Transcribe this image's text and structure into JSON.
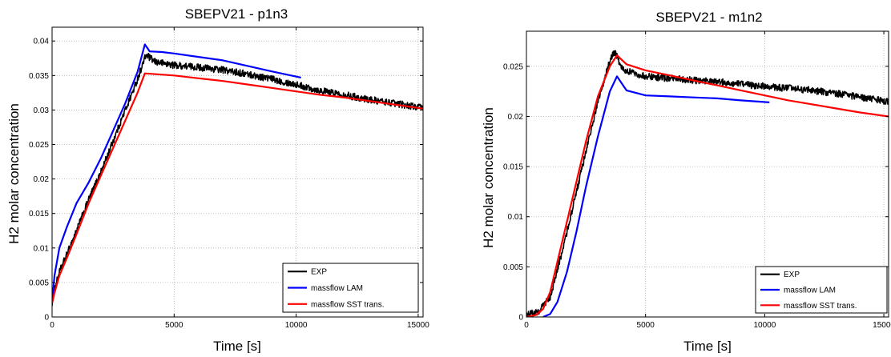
{
  "chart_data": [
    {
      "type": "line",
      "title": "SBEPV21 - p1n3",
      "xlabel": "Time [s]",
      "ylabel": "H2 molar concentration",
      "xlim": [
        0,
        15200
      ],
      "ylim": [
        0,
        0.042
      ],
      "xticks": [
        0,
        5000,
        10000,
        15000
      ],
      "yticks": [
        0,
        0.005,
        0.01,
        0.015,
        0.02,
        0.025,
        0.03,
        0.035,
        0.04
      ],
      "xtick_labels": [
        "0",
        "5000",
        "10000",
        "15000"
      ],
      "ytick_labels": [
        "0",
        "0.005",
        "0.01",
        "0.015",
        "0.02",
        "0.025",
        "0.03",
        "0.035",
        "0.04"
      ],
      "grid": true,
      "legend_position": "bottom-right",
      "series": [
        {
          "name": "EXP",
          "color": "#000000",
          "noisy": true,
          "x": [
            0,
            100,
            300,
            600,
            1000,
            1500,
            2000,
            2500,
            3000,
            3400,
            3700,
            3850,
            4200,
            5000,
            6000,
            7000,
            8000,
            9000,
            10000,
            11000,
            12000,
            13000,
            14000,
            15200
          ],
          "y": [
            0.002,
            0.004,
            0.0065,
            0.009,
            0.0125,
            0.017,
            0.021,
            0.0255,
            0.03,
            0.0335,
            0.0365,
            0.038,
            0.037,
            0.0365,
            0.0362,
            0.0358,
            0.0352,
            0.0345,
            0.0337,
            0.0328,
            0.0322,
            0.0315,
            0.031,
            0.0303
          ]
        },
        {
          "name": "massflow LAM",
          "color": "#0000ff",
          "noisy": false,
          "x": [
            0,
            100,
            300,
            600,
            1000,
            1500,
            2000,
            2500,
            3000,
            3500,
            3800,
            4000,
            4500,
            5000,
            6000,
            7000,
            8000,
            9000,
            10200
          ],
          "y": [
            0.002,
            0.006,
            0.01,
            0.013,
            0.0165,
            0.0195,
            0.023,
            0.027,
            0.031,
            0.0355,
            0.0395,
            0.0385,
            0.0384,
            0.0382,
            0.0377,
            0.0372,
            0.0364,
            0.0356,
            0.0347
          ]
        },
        {
          "name": "massflow SST trans.",
          "color": "#ff0000",
          "noisy": false,
          "x": [
            0,
            100,
            300,
            600,
            1000,
            1500,
            2000,
            2500,
            3000,
            3500,
            3800,
            5000,
            6000,
            7000,
            8000,
            9000,
            10000,
            11000,
            12000,
            13000,
            14000,
            15200
          ],
          "y": [
            0.002,
            0.0035,
            0.006,
            0.0085,
            0.012,
            0.0165,
            0.0205,
            0.0245,
            0.0285,
            0.0325,
            0.0353,
            0.035,
            0.0346,
            0.0342,
            0.0337,
            0.0332,
            0.0327,
            0.0322,
            0.0318,
            0.0313,
            0.0308,
            0.0302
          ]
        }
      ]
    },
    {
      "type": "line",
      "title": "SBEPV21 - m1n2",
      "xlabel": "Time [s]",
      "ylabel": "H2 molar concentration",
      "xlim": [
        0,
        15200
      ],
      "ylim": [
        0,
        0.0285
      ],
      "xticks": [
        0,
        5000,
        10000,
        15000
      ],
      "yticks": [
        0,
        0.005,
        0.01,
        0.015,
        0.02,
        0.025
      ],
      "xtick_labels": [
        "0",
        "5000",
        "10000",
        "15000"
      ],
      "ytick_labels": [
        "0",
        "0.005",
        "0.01",
        "0.015",
        "0.02",
        "0.025"
      ],
      "grid": true,
      "legend_position": "bottom-right",
      "series": [
        {
          "name": "EXP",
          "color": "#000000",
          "noisy": true,
          "x": [
            0,
            500,
            1000,
            1500,
            2000,
            2500,
            3000,
            3500,
            3700,
            4000,
            4500,
            5000,
            6000,
            7000,
            8000,
            9000,
            10000,
            11000,
            12000,
            13000,
            14000,
            15200
          ],
          "y": [
            0.0003,
            0.0005,
            0.002,
            0.0065,
            0.0115,
            0.0165,
            0.0215,
            0.0255,
            0.0265,
            0.0248,
            0.0243,
            0.024,
            0.0238,
            0.0236,
            0.0235,
            0.0232,
            0.023,
            0.0228,
            0.0226,
            0.0223,
            0.0219,
            0.0215
          ]
        },
        {
          "name": "massflow LAM",
          "color": "#0000ff",
          "noisy": false,
          "x": [
            700,
            1000,
            1300,
            1700,
            2100,
            2500,
            3000,
            3500,
            3800,
            4200,
            5000,
            6000,
            7000,
            8000,
            9000,
            10200
          ],
          "y": [
            0,
            0.0003,
            0.0015,
            0.0045,
            0.0085,
            0.013,
            0.018,
            0.0225,
            0.024,
            0.0226,
            0.0221,
            0.022,
            0.0219,
            0.0218,
            0.0216,
            0.0214
          ]
        },
        {
          "name": "massflow SST trans.",
          "color": "#ff0000",
          "noisy": false,
          "x": [
            0,
            400,
            700,
            1000,
            1500,
            2000,
            2500,
            3000,
            3500,
            3800,
            4200,
            5000,
            6000,
            7000,
            8000,
            9000,
            10000,
            11000,
            12000,
            13000,
            14000,
            15200
          ],
          "y": [
            0,
            0.0002,
            0.0008,
            0.0025,
            0.0075,
            0.0125,
            0.0175,
            0.022,
            0.025,
            0.0261,
            0.0252,
            0.0246,
            0.0241,
            0.0236,
            0.0231,
            0.0226,
            0.0221,
            0.0216,
            0.0212,
            0.0208,
            0.0204,
            0.02
          ]
        }
      ]
    }
  ]
}
